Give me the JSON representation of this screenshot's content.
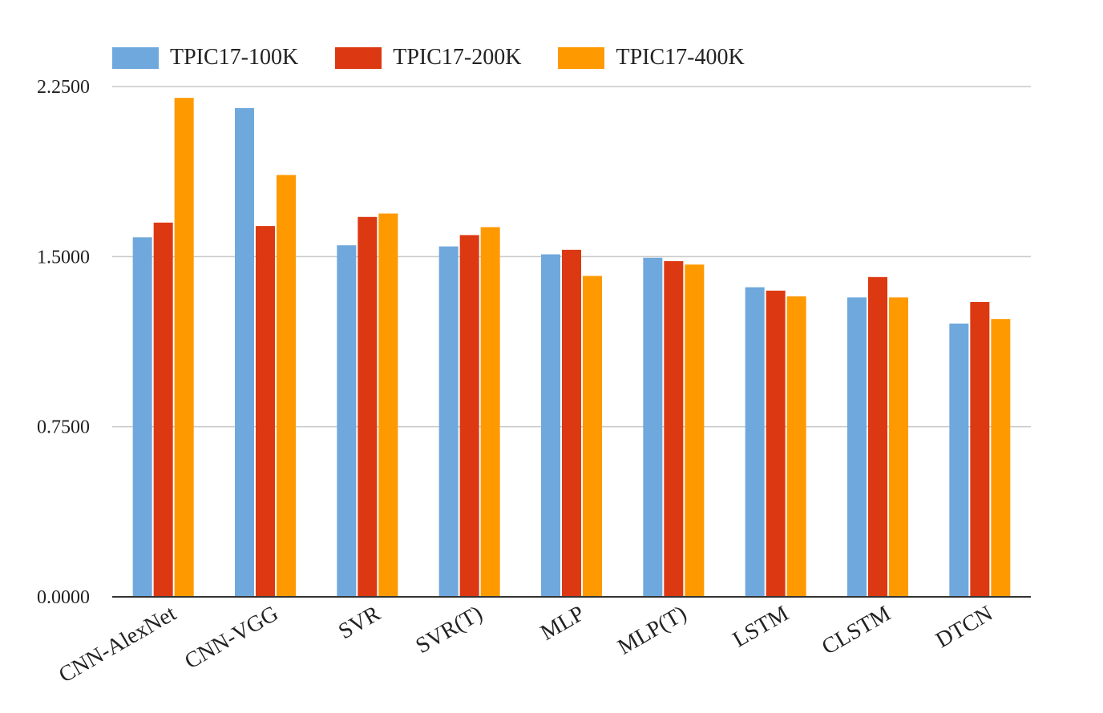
{
  "chart_data": {
    "type": "bar",
    "categories": [
      "CNN-AlexNet",
      "CNN-VGG",
      "SVR",
      "SVR(T)",
      "MLP",
      "MLP(T)",
      "LSTM",
      "CLSTM",
      "DTCN"
    ],
    "series": [
      {
        "name": "TPIC17-100K",
        "color": "#6fa8dc",
        "values": [
          1.585,
          2.155,
          1.55,
          1.545,
          1.51,
          1.495,
          1.365,
          1.32,
          1.205
        ]
      },
      {
        "name": "TPIC17-200K",
        "color": "#dc3912",
        "values": [
          1.65,
          1.635,
          1.675,
          1.595,
          1.53,
          1.48,
          1.35,
          1.41,
          1.3
        ]
      },
      {
        "name": "TPIC17-400K",
        "color": "#ff9900",
        "values": [
          2.2,
          1.86,
          1.69,
          1.63,
          1.415,
          1.465,
          1.325,
          1.32,
          1.225
        ]
      }
    ],
    "y_ticks": [
      "0.0000",
      "0.7500",
      "1.5000",
      "2.2500"
    ],
    "ylim": [
      0,
      2.25
    ],
    "title": "",
    "xlabel": "",
    "ylabel": "",
    "grid": true,
    "legend_position": "top-left"
  }
}
